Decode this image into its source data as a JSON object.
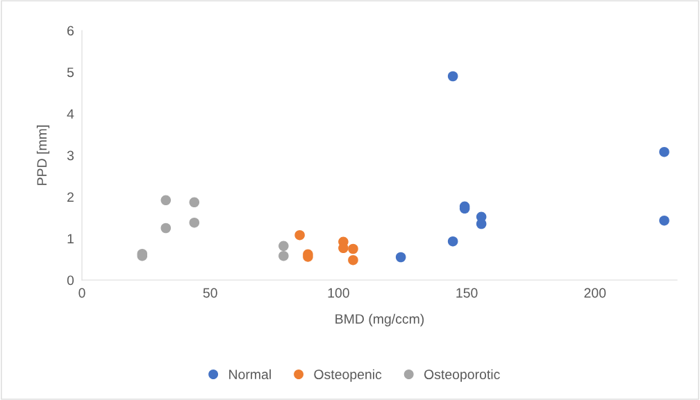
{
  "chart_data": {
    "type": "scatter",
    "xlabel": "BMD (mg/ccm)",
    "ylabel": "PPD [mm]",
    "xlim": [
      0,
      232
    ],
    "xticks": [
      0,
      50,
      100,
      150,
      200
    ],
    "ylim": [
      0,
      6
    ],
    "yticks": [
      0,
      1,
      2,
      3,
      4,
      5,
      6
    ],
    "grid": false,
    "legend": "bottom",
    "marker": "circle",
    "series": [
      {
        "name": "Normal",
        "color": "#4472c4",
        "x": [
          144.6,
          227,
          149.2,
          149.2,
          155.7,
          155.7,
          227,
          144.6,
          124.3
        ],
        "values": [
          4.9,
          3.08,
          1.77,
          1.72,
          1.52,
          1.35,
          1.43,
          0.93,
          0.55
        ]
      },
      {
        "name": "Osteopenic",
        "color": "#ed7d31",
        "x": [
          84.9,
          101.9,
          101.9,
          105.7,
          105.7,
          88.1,
          88.1
        ],
        "values": [
          1.08,
          0.92,
          0.77,
          0.75,
          0.48,
          0.62,
          0.56
        ]
      },
      {
        "name": "Osteoporotic",
        "color": "#a5a5a5",
        "x": [
          23.5,
          23.5,
          32.7,
          32.7,
          43.8,
          43.8,
          78.6,
          78.6
        ],
        "values": [
          0.63,
          0.58,
          1.92,
          1.25,
          1.87,
          1.38,
          0.82,
          0.58
        ]
      }
    ]
  }
}
